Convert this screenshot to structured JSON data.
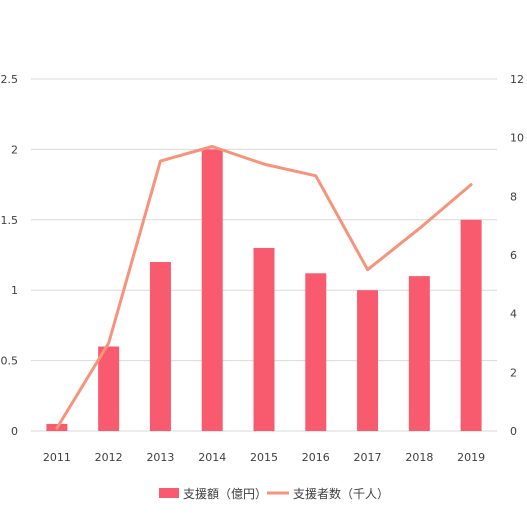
{
  "chart_data": {
    "type": "bar",
    "categories": [
      "2011",
      "2012",
      "2013",
      "2014",
      "2015",
      "2016",
      "2017",
      "2018",
      "2019"
    ],
    "series": [
      {
        "name": "支援額（億円）",
        "type": "bar",
        "axis": "left",
        "values": [
          0.05,
          0.6,
          1.2,
          2.0,
          1.3,
          1.12,
          1.0,
          1.1,
          1.5
        ]
      },
      {
        "name": "支援者数（千人）",
        "type": "line",
        "axis": "right",
        "values": [
          0.1,
          3.0,
          9.2,
          9.7,
          9.1,
          8.7,
          5.5,
          6.9,
          8.4
        ]
      }
    ],
    "y_left": {
      "ylim": [
        0,
        2.5
      ],
      "ticks": [
        "0",
        "0.5",
        "1",
        "1.5",
        "2",
        "2.5"
      ]
    },
    "y_right": {
      "ylim": [
        0,
        12
      ],
      "ticks": [
        "0",
        "2",
        "4",
        "6",
        "8",
        "10",
        "12"
      ]
    },
    "grid": true,
    "legend": "bottom",
    "colors": {
      "bar": "#f85a6e",
      "line": "#f7937a",
      "grid": "#d9d9d9",
      "text": "#404040"
    }
  }
}
